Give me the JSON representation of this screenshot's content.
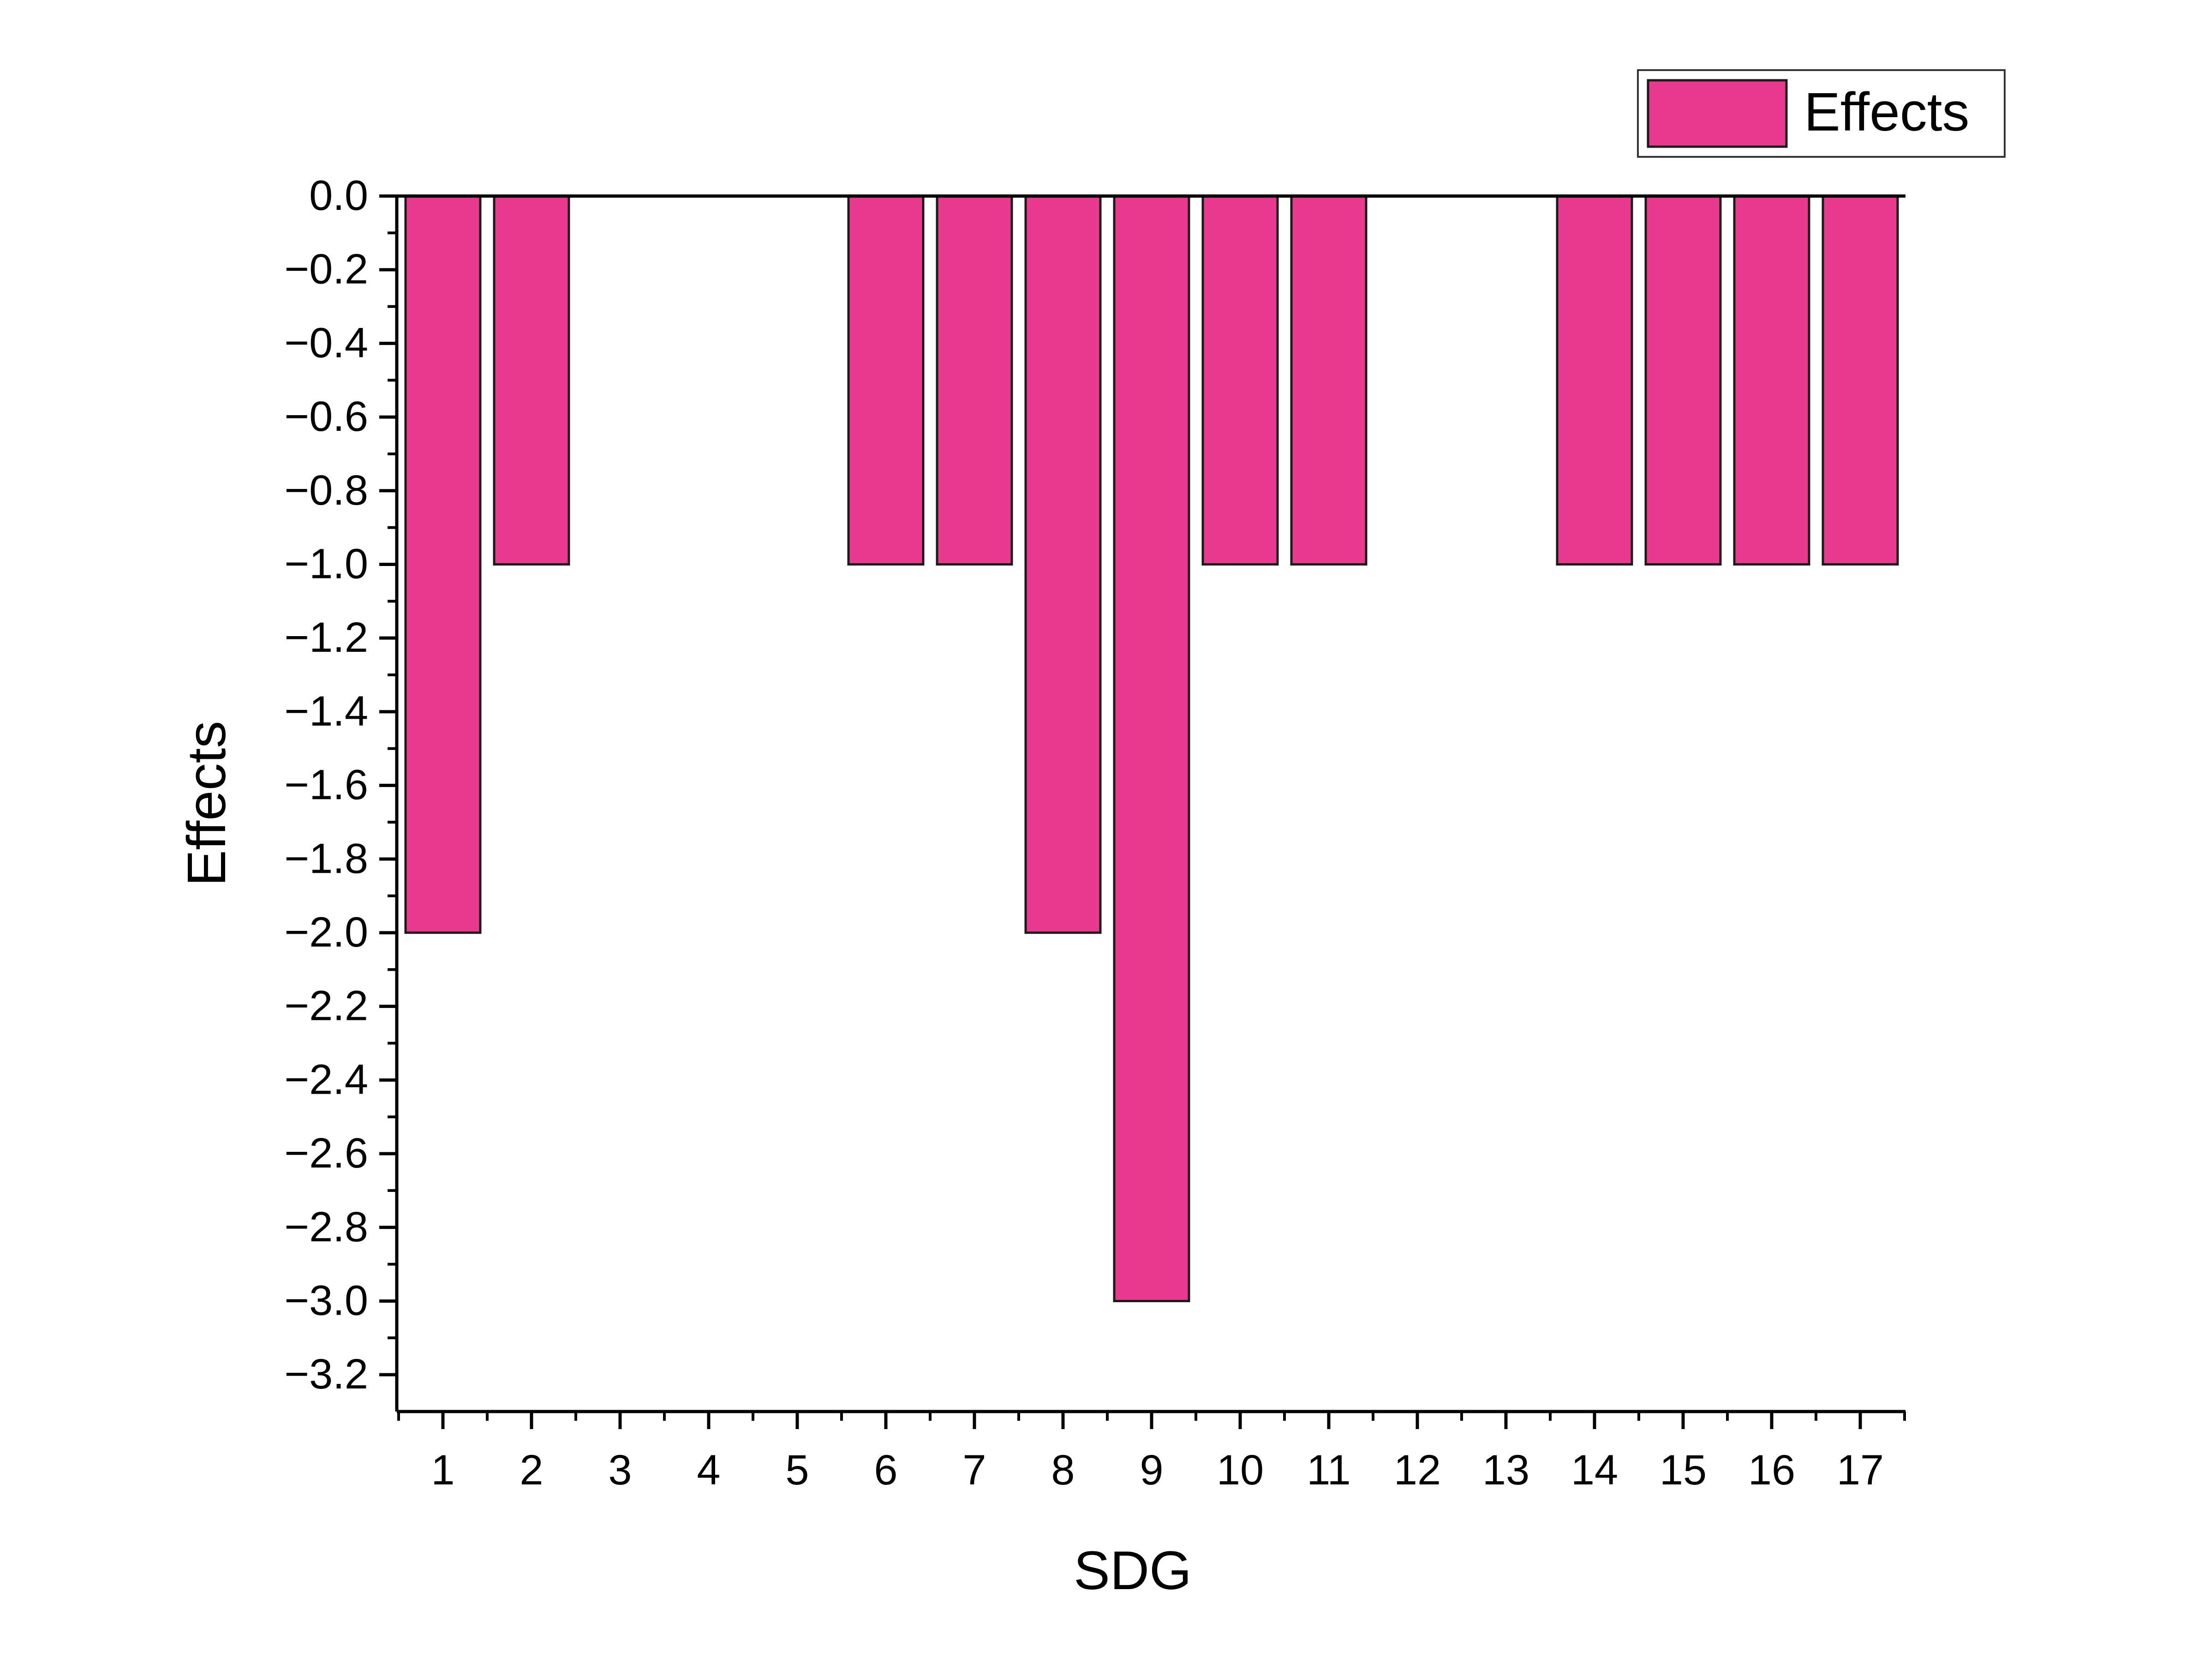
{
  "chart_data": {
    "type": "bar",
    "title": "",
    "xlabel": "SDG",
    "ylabel": "Effects",
    "categories": [
      "1",
      "2",
      "3",
      "4",
      "5",
      "6",
      "7",
      "8",
      "9",
      "10",
      "11",
      "12",
      "13",
      "14",
      "15",
      "16",
      "17"
    ],
    "series": [
      {
        "name": "Effects",
        "values": [
          -2,
          -1,
          0,
          0,
          0,
          -1,
          -1,
          -2,
          -3,
          -1,
          -1,
          0,
          0,
          -1,
          -1,
          -1,
          -1
        ]
      }
    ],
    "ylim": [
      -3.3,
      0
    ],
    "yticks": [
      "0.0",
      "-0.2",
      "-0.4",
      "-0.6",
      "-0.8",
      "-1.0",
      "-1.2",
      "-1.4",
      "-1.6",
      "-1.8",
      "-2.0",
      "-2.2",
      "-2.4",
      "-2.6",
      "-2.8",
      "-3.0",
      "-3.2"
    ],
    "ytick_values": [
      0,
      -0.2,
      -0.4,
      -0.6,
      -0.8,
      -1.0,
      -1.2,
      -1.4,
      -1.6,
      -1.8,
      -2.0,
      -2.2,
      -2.4,
      -2.6,
      -2.8,
      -3.0,
      -3.2
    ],
    "grid": false,
    "legend": {
      "position": "top-right",
      "entries": [
        "Effects"
      ]
    },
    "colors": {
      "bar_fill": "#E8398F",
      "bar_stroke": "#1a1a1a",
      "axis": "#000000"
    }
  }
}
